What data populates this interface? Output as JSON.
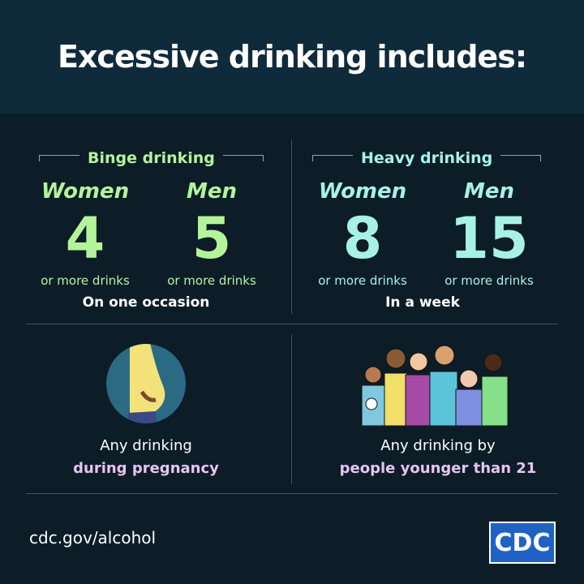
{
  "title": "Excessive drinking includes:",
  "binge": {
    "label": "Binge drinking",
    "women_label": "Women",
    "women_num": "4",
    "men_label": "Men",
    "men_num": "5",
    "unit": "or more drinks",
    "period": "On one occasion"
  },
  "heavy": {
    "label": "Heavy drinking",
    "women_label": "Women",
    "women_num": "8",
    "men_label": "Men",
    "men_num": "15",
    "unit": "or more drinks",
    "period": "In a week"
  },
  "pregnancy": {
    "line1": "Any drinking",
    "line2": "during pregnancy"
  },
  "underage": {
    "line1": "Any drinking by",
    "line2": "people younger than 21"
  },
  "footer": {
    "url": "cdc.gov/alcohol",
    "logo": "CDC"
  },
  "colors": {
    "binge": "#b5f39a",
    "heavy": "#a7f2e4",
    "highlight": "#e8c3f2",
    "background": "#0c1d28",
    "header": "#0f2b3b"
  }
}
